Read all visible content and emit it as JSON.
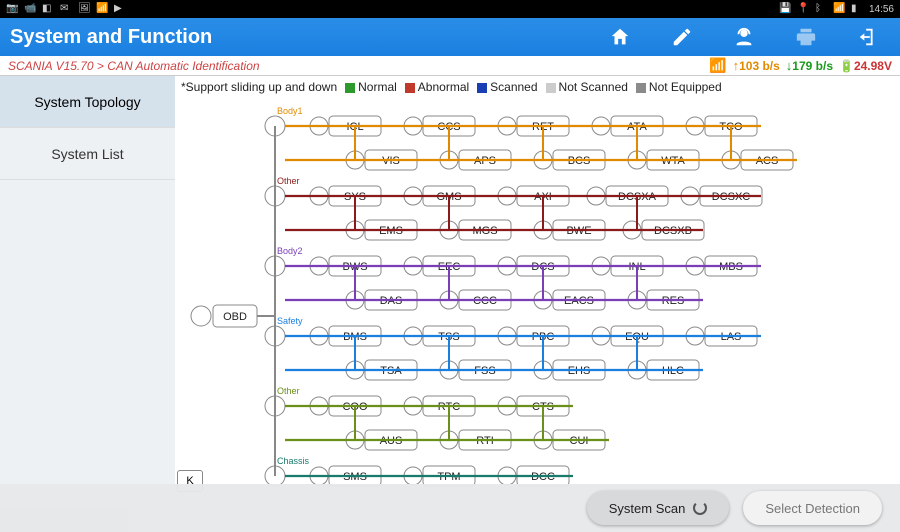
{
  "statusbar": {
    "time": "14:56"
  },
  "title": "System and Function",
  "breadcrumb": "SCANIA V15.70 > CAN Automatic Identification",
  "net": {
    "up": "103 b/s",
    "down": "179 b/s",
    "volt": "24.98V"
  },
  "sidebar": {
    "items": [
      {
        "label": "System Topology",
        "active": true
      },
      {
        "label": "System List",
        "active": false
      }
    ]
  },
  "legend": {
    "note": "*Support sliding up and down",
    "keys": [
      {
        "label": "Normal",
        "color": "#2e9a2e"
      },
      {
        "label": "Abnormal",
        "color": "#c0392b"
      },
      {
        "label": "Scanned",
        "color": "#1a3fb5"
      },
      {
        "label": "Not Scanned",
        "color": "#cccccc"
      },
      {
        "label": "Not Equipped",
        "color": "#8a8a8a"
      }
    ]
  },
  "topology": {
    "root": "OBD",
    "kbox": "K",
    "node_fill": "#ffffff",
    "node_stroke": "#888888",
    "node_text_color": "#222222",
    "root_line_color": "#888888",
    "groups": [
      {
        "label": "Body1",
        "color": "#e08a00",
        "rows": [
          [
            "ICL",
            "CCS",
            "RET",
            "ATA",
            "TCO"
          ],
          [
            "VIS",
            "APS",
            "BCS",
            "WTA",
            "ACS"
          ]
        ]
      },
      {
        "label": "Other",
        "color": "#8b1a1a",
        "rows": [
          [
            "SYS",
            "GMS",
            "AXI",
            "DCSXA",
            "DCSXC"
          ],
          [
            "EMS",
            "MGS",
            "BWE",
            "DCSXB"
          ]
        ]
      },
      {
        "label": "Body2",
        "color": "#7a3fb5",
        "rows": [
          [
            "BWS",
            "EEC",
            "DCS",
            "INL",
            "MBS"
          ],
          [
            "DAS",
            "CCC",
            "EACS",
            "RES"
          ]
        ]
      },
      {
        "label": "Safety",
        "color": "#1b7fe0",
        "rows": [
          [
            "BMS",
            "TSS",
            "PBC",
            "EQU",
            "LAS"
          ],
          [
            "TSA",
            "FSS",
            "EHS",
            "HLC"
          ]
        ]
      },
      {
        "label": "Other",
        "color": "#6a8f1a",
        "rows": [
          [
            "COO",
            "RTC",
            "CTS"
          ],
          [
            "AUS",
            "RTI",
            "CUI"
          ]
        ]
      },
      {
        "label": "Chassis",
        "color": "#1a7a6a",
        "rows": [
          [
            "SMS",
            "TPM",
            "DCC"
          ]
        ]
      }
    ]
  },
  "bottom": {
    "scan": "System Scan",
    "select": "Select Detection"
  }
}
